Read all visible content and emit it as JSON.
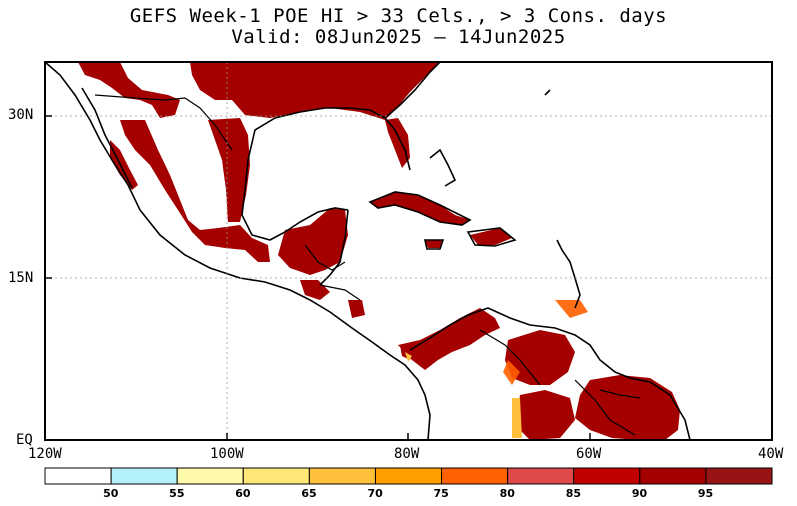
{
  "title": {
    "line1": "GEFS Week-1 POE HI > 33 Cels., > 3 Cons. days",
    "line2": "Valid: 08Jun2025 — 14Jun2025"
  },
  "axes": {
    "lat_labels": [
      "30N",
      "15N",
      "EQ"
    ],
    "lon_labels": [
      "120W",
      "100W",
      "80W",
      "60W",
      "40W"
    ]
  },
  "colorbar": {
    "labels": [
      "50",
      "55",
      "60",
      "65",
      "70",
      "75",
      "80",
      "85",
      "90",
      "95"
    ],
    "colors": [
      "#ffffff",
      "#b4f0fa",
      "#fffaaa",
      "#ffe878",
      "#ffc03c",
      "#ffa000",
      "#ff6000",
      "#e14a4a",
      "#c00000",
      "#a50000",
      "#961414"
    ]
  },
  "map": {
    "land_color": "#ffffff",
    "dominant_fill_color": "#a50000",
    "line_color": "#000000"
  }
}
